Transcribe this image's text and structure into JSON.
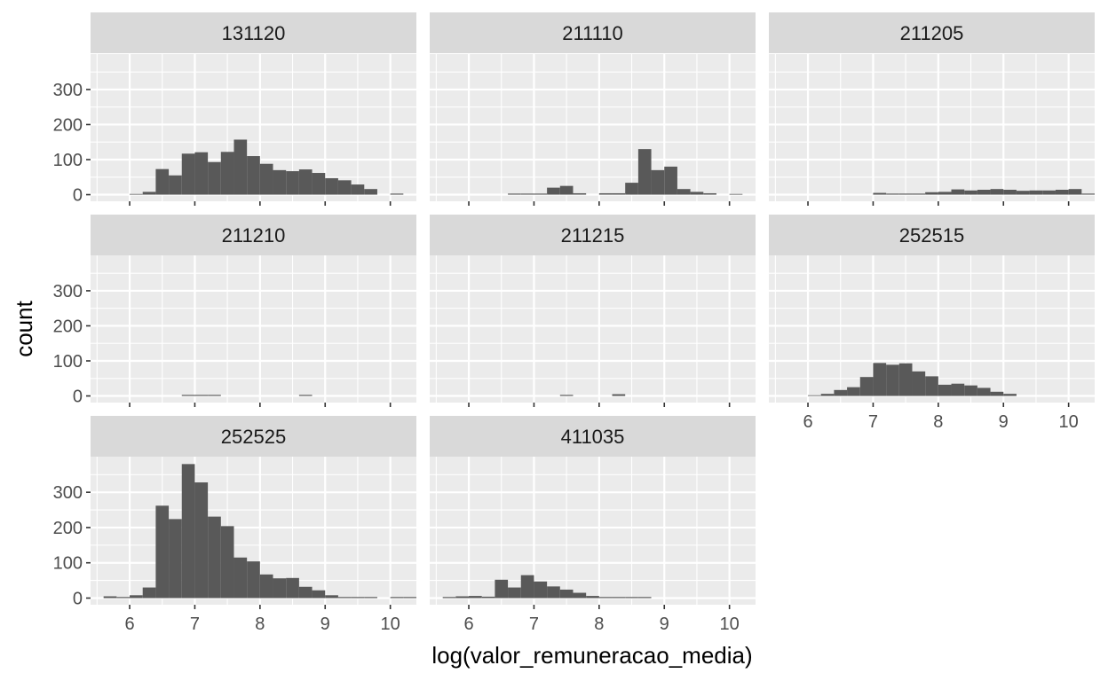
{
  "chart_data": {
    "type": "bar",
    "subtype": "faceted-histogram",
    "title": "",
    "xlabel": "log(valor_remuneracao_media)",
    "ylabel": "count",
    "xlim": [
      5.4,
      10.4
    ],
    "ylim": [
      0,
      380
    ],
    "x_ticks": [
      6,
      7,
      8,
      9,
      10
    ],
    "y_ticks": [
      0,
      100,
      200,
      300
    ],
    "bin_width": 0.2,
    "grid": true,
    "facet_columns": 3,
    "colors": {
      "bar": "#595959",
      "panel": "#EBEBEB",
      "strip": "#D9D9D9",
      "grid": "#FFFFFF"
    },
    "panels": [
      {
        "label": "131120",
        "bins": [
          [
            6.2,
            2
          ],
          [
            6.4,
            8
          ],
          [
            6.6,
            73
          ],
          [
            6.8,
            55
          ],
          [
            7.0,
            117
          ],
          [
            7.2,
            121
          ],
          [
            7.4,
            93
          ],
          [
            7.6,
            122
          ],
          [
            7.8,
            157
          ],
          [
            8.0,
            110
          ],
          [
            8.2,
            88
          ],
          [
            8.4,
            70
          ],
          [
            8.6,
            67
          ],
          [
            8.8,
            72
          ],
          [
            9.0,
            62
          ],
          [
            9.2,
            47
          ],
          [
            9.4,
            41
          ],
          [
            9.6,
            29
          ],
          [
            9.8,
            16
          ],
          [
            10.2,
            3
          ]
        ]
      },
      {
        "label": "211110",
        "bins": [
          [
            6.8,
            3
          ],
          [
            7.0,
            3
          ],
          [
            7.2,
            3
          ],
          [
            7.4,
            20
          ],
          [
            7.6,
            25
          ],
          [
            7.8,
            4
          ],
          [
            8.2,
            4
          ],
          [
            8.4,
            4
          ],
          [
            8.6,
            34
          ],
          [
            8.8,
            130
          ],
          [
            9.0,
            70
          ],
          [
            9.2,
            80
          ],
          [
            9.4,
            16
          ],
          [
            9.6,
            8
          ],
          [
            9.8,
            4
          ],
          [
            10.2,
            2
          ]
        ]
      },
      {
        "label": "211205",
        "bins": [
          [
            7.2,
            5
          ],
          [
            7.4,
            3
          ],
          [
            7.6,
            3
          ],
          [
            7.8,
            3
          ],
          [
            8.0,
            7
          ],
          [
            8.2,
            8
          ],
          [
            8.4,
            15
          ],
          [
            8.6,
            12
          ],
          [
            8.8,
            14
          ],
          [
            9.0,
            16
          ],
          [
            9.2,
            14
          ],
          [
            9.4,
            11
          ],
          [
            9.6,
            12
          ],
          [
            9.8,
            12
          ],
          [
            10.0,
            14
          ],
          [
            10.2,
            16
          ],
          [
            10.4,
            3
          ]
        ]
      },
      {
        "label": "211210",
        "bins": [
          [
            7.0,
            3
          ],
          [
            7.2,
            3
          ],
          [
            7.4,
            3
          ],
          [
            8.8,
            3
          ]
        ]
      },
      {
        "label": "211215",
        "bins": [
          [
            7.6,
            3
          ],
          [
            8.4,
            5
          ]
        ]
      },
      {
        "label": "252515",
        "bins": [
          [
            6.2,
            2
          ],
          [
            6.4,
            6
          ],
          [
            6.6,
            17
          ],
          [
            6.8,
            25
          ],
          [
            7.0,
            54
          ],
          [
            7.2,
            94
          ],
          [
            7.4,
            89
          ],
          [
            7.6,
            93
          ],
          [
            7.8,
            70
          ],
          [
            8.0,
            56
          ],
          [
            8.2,
            32
          ],
          [
            8.4,
            35
          ],
          [
            8.6,
            30
          ],
          [
            8.8,
            23
          ],
          [
            9.0,
            12
          ],
          [
            9.2,
            6
          ]
        ]
      },
      {
        "label": "252525",
        "bins": [
          [
            5.8,
            5
          ],
          [
            6.0,
            3
          ],
          [
            6.2,
            8
          ],
          [
            6.4,
            30
          ],
          [
            6.6,
            262
          ],
          [
            6.8,
            224
          ],
          [
            7.0,
            380
          ],
          [
            7.2,
            328
          ],
          [
            7.4,
            231
          ],
          [
            7.6,
            204
          ],
          [
            7.8,
            115
          ],
          [
            8.0,
            104
          ],
          [
            8.2,
            67
          ],
          [
            8.4,
            56
          ],
          [
            8.6,
            57
          ],
          [
            8.8,
            32
          ],
          [
            9.0,
            22
          ],
          [
            9.2,
            8
          ],
          [
            9.4,
            3
          ],
          [
            9.6,
            3
          ],
          [
            9.8,
            3
          ],
          [
            10.2,
            3
          ],
          [
            10.4,
            3
          ]
        ]
      },
      {
        "label": "411035",
        "bins": [
          [
            5.8,
            3
          ],
          [
            6.0,
            5
          ],
          [
            6.2,
            6
          ],
          [
            6.4,
            4
          ],
          [
            6.6,
            52
          ],
          [
            6.8,
            30
          ],
          [
            7.0,
            65
          ],
          [
            7.2,
            47
          ],
          [
            7.4,
            33
          ],
          [
            7.6,
            24
          ],
          [
            7.8,
            15
          ],
          [
            8.0,
            6
          ],
          [
            8.2,
            3
          ],
          [
            8.4,
            3
          ],
          [
            8.6,
            3
          ],
          [
            8.8,
            3
          ]
        ]
      }
    ]
  }
}
